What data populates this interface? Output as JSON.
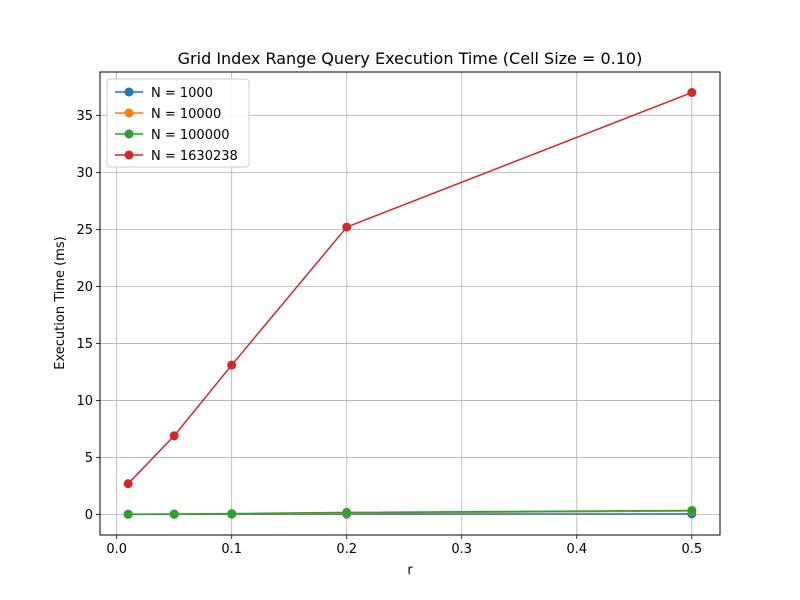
{
  "chart_data": {
    "type": "line",
    "title": "Grid Index Range Query Execution Time (Cell Size = 0.10)",
    "xlabel": "r",
    "ylabel": "Execution Time (ms)",
    "x": [
      0.01,
      0.05,
      0.1,
      0.2,
      0.5
    ],
    "xlim": [
      -0.0145,
      0.5245
    ],
    "ylim": [
      -1.8,
      38.8
    ],
    "xticks": [
      0.0,
      0.1,
      0.2,
      0.3,
      0.4,
      0.5
    ],
    "xtick_labels": [
      "0.0",
      "0.1",
      "0.2",
      "0.3",
      "0.4",
      "0.5"
    ],
    "yticks": [
      0,
      5,
      10,
      15,
      20,
      25,
      30,
      35
    ],
    "ytick_labels": [
      "0",
      "5",
      "10",
      "15",
      "20",
      "25",
      "30",
      "35"
    ],
    "grid": true,
    "legend_position": "top-left",
    "series": [
      {
        "name": "N = 1000",
        "color": "#1f77b4",
        "values": [
          0.01,
          0.01,
          0.02,
          0.03,
          0.05
        ]
      },
      {
        "name": "N = 10000",
        "color": "#ff7f0e",
        "values": [
          0.02,
          0.03,
          0.05,
          0.12,
          0.3
        ]
      },
      {
        "name": "N = 100000",
        "color": "#2ca02c",
        "values": [
          0.02,
          0.04,
          0.07,
          0.18,
          0.35
        ]
      },
      {
        "name": "N = 1630238",
        "color": "#d62728",
        "values": [
          2.7,
          6.9,
          13.1,
          25.2,
          37.0
        ]
      }
    ]
  }
}
